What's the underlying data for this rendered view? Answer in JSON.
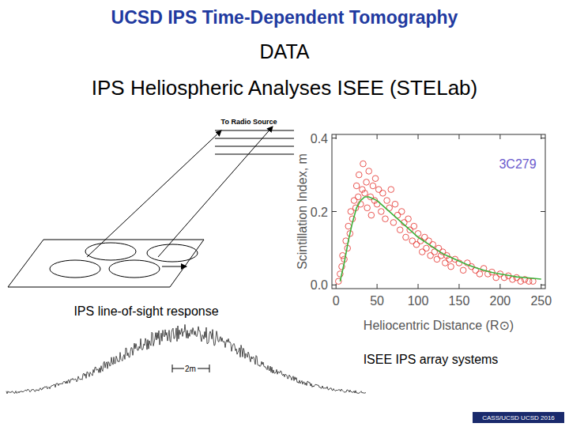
{
  "page": {
    "title": "UCSD IPS Time-Dependent Tomography",
    "heading": "DATA",
    "subtitle": "IPS Heliospheric Analyses ISEE (STELab)",
    "diagram_label": "To Radio Source",
    "caption_left": "IPS line-of-sight response",
    "caption_right": "ISEE IPS array systems",
    "scale_label": "2m",
    "footer": "CASS/UCSD UCSD 2016"
  },
  "chart_data": {
    "type": "scatter",
    "annotation": "3C279",
    "x_label": "Heliocentric Distance (R⊙)",
    "y_label": "Scintillation Index, m",
    "xlim": [
      -5,
      255
    ],
    "ylim": [
      -0.01,
      0.41
    ],
    "xticks": [
      0,
      50,
      100,
      150,
      200,
      250
    ],
    "yticks": [
      {
        "value": 0,
        "label": "0.0"
      },
      0.2,
      0.4
    ],
    "series": [
      {
        "type": "scatter",
        "color": "#e53935",
        "marker": "circle",
        "x": [
          3,
          5,
          7,
          8,
          10,
          12,
          14,
          15,
          17,
          18,
          20,
          22,
          24,
          25,
          27,
          28,
          30,
          32,
          33,
          35,
          37,
          38,
          40,
          42,
          43,
          45,
          47,
          48,
          50,
          52,
          55,
          57,
          60,
          62,
          65,
          67,
          70,
          72,
          75,
          78,
          80,
          83,
          85,
          88,
          90,
          93,
          95,
          98,
          100,
          103,
          105,
          108,
          110,
          113,
          115,
          118,
          120,
          123,
          125,
          128,
          130,
          133,
          135,
          138,
          140,
          145,
          150,
          155,
          160,
          165,
          170,
          175,
          180,
          185,
          190,
          195,
          200,
          205,
          210,
          215,
          220,
          225,
          230,
          235,
          240
        ],
        "values": [
          0.01,
          0.03,
          0.05,
          0.08,
          0.07,
          0.12,
          0.1,
          0.16,
          0.14,
          0.2,
          0.18,
          0.23,
          0.21,
          0.27,
          0.24,
          0.3,
          0.22,
          0.26,
          0.33,
          0.25,
          0.28,
          0.21,
          0.31,
          0.24,
          0.19,
          0.27,
          0.23,
          0.29,
          0.22,
          0.26,
          0.2,
          0.25,
          0.18,
          0.23,
          0.21,
          0.26,
          0.17,
          0.22,
          0.19,
          0.15,
          0.2,
          0.17,
          0.13,
          0.18,
          0.15,
          0.12,
          0.16,
          0.11,
          0.14,
          0.12,
          0.09,
          0.13,
          0.1,
          0.12,
          0.08,
          0.11,
          0.09,
          0.07,
          0.1,
          0.08,
          0.09,
          0.06,
          0.08,
          0.07,
          0.05,
          0.07,
          0.06,
          0.04,
          0.06,
          0.05,
          0.04,
          0.03,
          0.045,
          0.03,
          0.035,
          0.02,
          0.03,
          0.02,
          0.025,
          0.015,
          0.02,
          0.01,
          0.015,
          0.01,
          0.01
        ]
      },
      {
        "type": "line",
        "color": "#3cb33c",
        "line_style": "solid",
        "x": [
          5,
          10,
          15,
          20,
          25,
          30,
          35,
          40,
          50,
          60,
          70,
          80,
          90,
          100,
          110,
          120,
          130,
          140,
          150,
          160,
          170,
          180,
          190,
          200,
          210,
          220,
          230,
          240,
          250
        ],
        "values": [
          0.01,
          0.06,
          0.12,
          0.17,
          0.21,
          0.23,
          0.24,
          0.24,
          0.23,
          0.21,
          0.19,
          0.17,
          0.15,
          0.13,
          0.115,
          0.1,
          0.085,
          0.075,
          0.065,
          0.055,
          0.047,
          0.04,
          0.034,
          0.03,
          0.026,
          0.022,
          0.02,
          0.018,
          0.016
        ]
      }
    ]
  }
}
